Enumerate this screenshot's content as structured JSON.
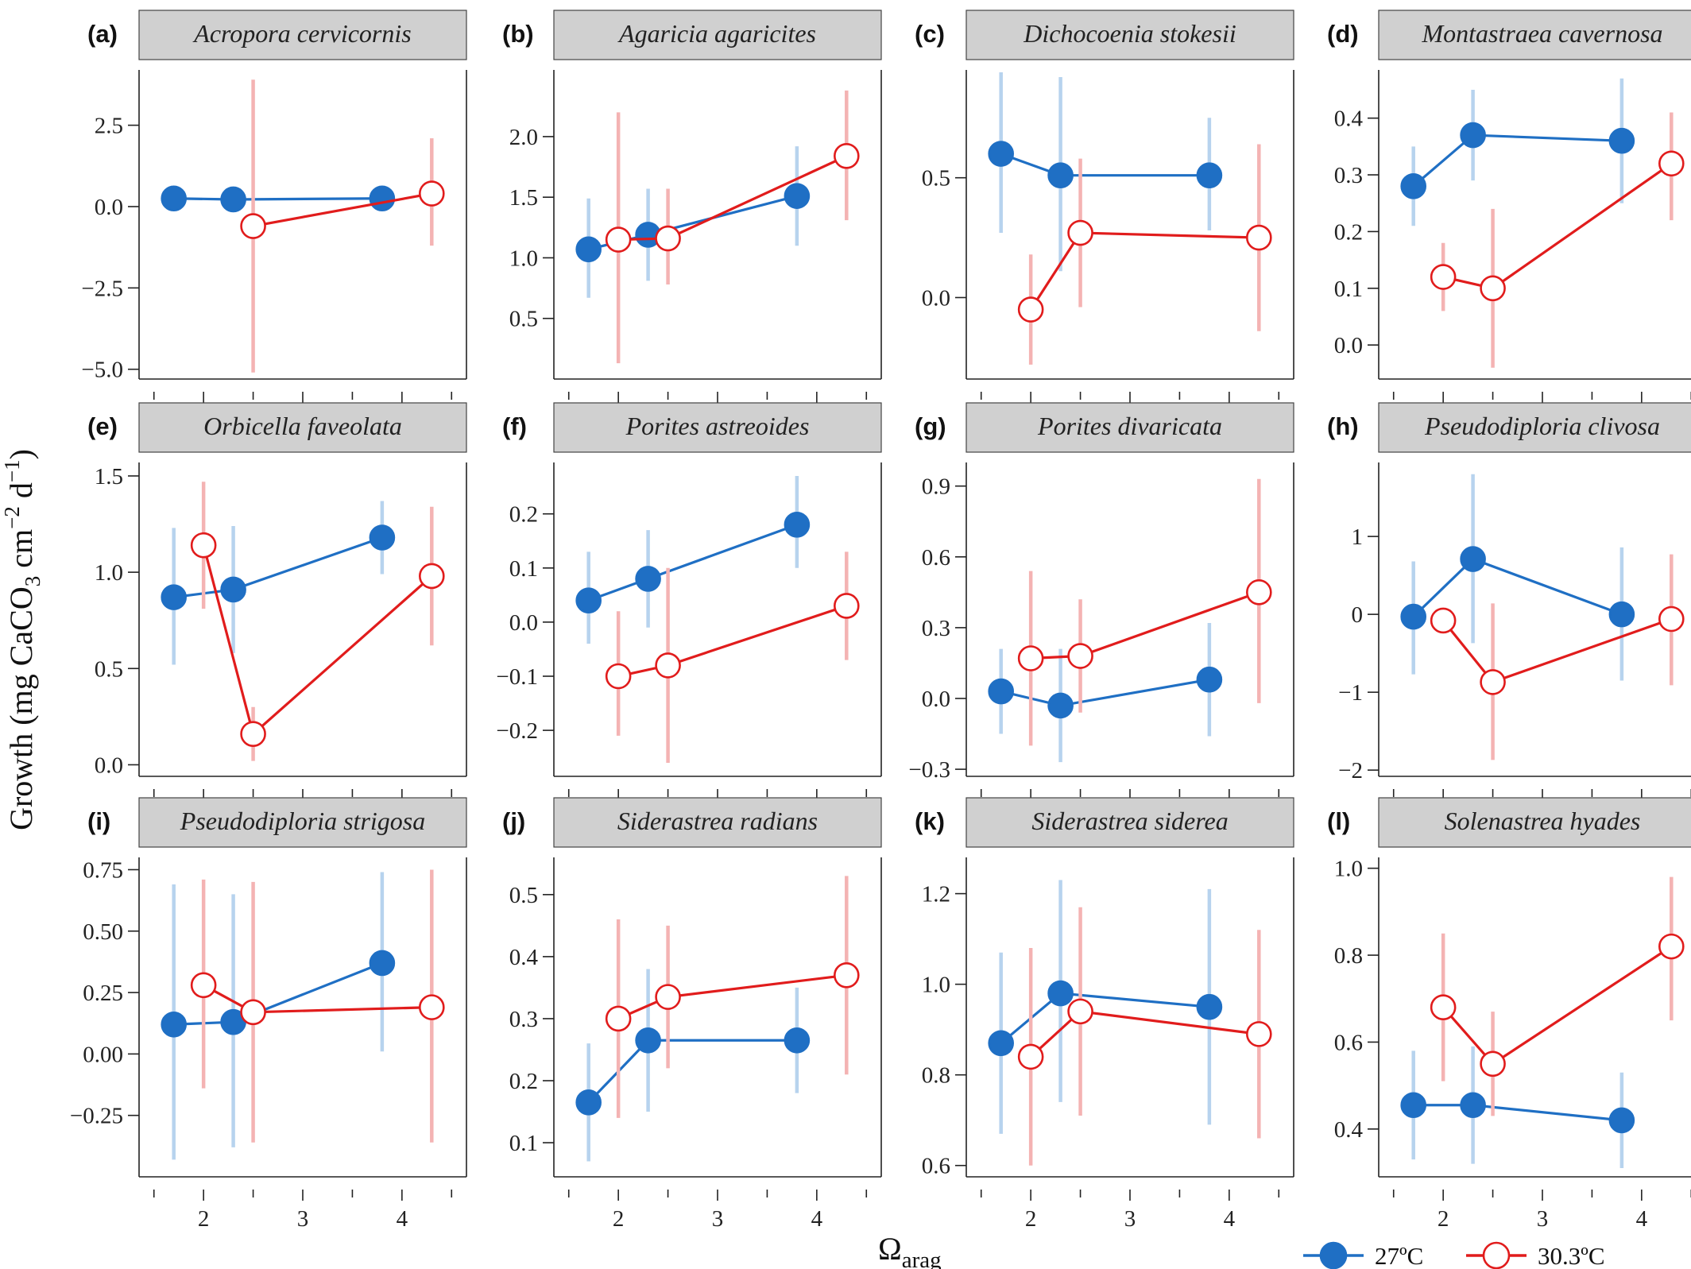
{
  "figure": {
    "ylabel_parts": [
      "Growth (mg  CaCO",
      "3",
      " cm",
      "−2",
      " d",
      "−1",
      ")"
    ],
    "xlabel_main": "Ω",
    "xlabel_sub": "arag",
    "colors": {
      "t27": "#1f6fc4",
      "t30": "#e11c1c",
      "t27_err": "#b7d3ee",
      "t30_err": "#f4b3b3",
      "strip": "#d0d0d0"
    }
  },
  "legend": [
    {
      "key": "t27",
      "label": "27ºC",
      "marker": "filled"
    },
    {
      "key": "t30",
      "label": "30.3ºC",
      "marker": "open"
    }
  ],
  "chart_data": [
    {
      "type": "line",
      "letter": "(a)",
      "title": "Acropora cervicornis",
      "xlim": [
        1.35,
        4.65
      ],
      "xticks": [
        2,
        3,
        4
      ],
      "show_x_labels": false,
      "ylim": [
        -5.3,
        4.2
      ],
      "yticks": [
        -5,
        -2.5,
        0,
        2.5
      ],
      "ytick_labels": [
        "−5.0",
        "−2.5",
        "0.0",
        "2.5"
      ],
      "series": [
        {
          "temp": "t27",
          "points": [
            [
              1.7,
              0.25,
              0.25,
              0.25
            ],
            [
              2.3,
              0.22,
              0.22,
              0.22
            ],
            [
              3.8,
              0.25,
              0.25,
              0.25
            ]
          ]
        },
        {
          "temp": "t30",
          "points": [
            [
              2.5,
              -0.6,
              -5.1,
              3.9
            ],
            [
              4.3,
              0.4,
              -1.2,
              2.1
            ]
          ]
        }
      ]
    },
    {
      "type": "line",
      "letter": "(b)",
      "title": "Agaricia agaricites",
      "xlim": [
        1.35,
        4.65
      ],
      "xticks": [
        2,
        3,
        4
      ],
      "show_x_labels": false,
      "ylim": [
        0.0,
        2.55
      ],
      "yticks": [
        0.5,
        1.0,
        1.5,
        2.0
      ],
      "ytick_labels": [
        "0.5",
        "1.0",
        "1.5",
        "2.0"
      ],
      "series": [
        {
          "temp": "t27",
          "points": [
            [
              1.7,
              1.07,
              0.67,
              1.49
            ],
            [
              2.3,
              1.19,
              0.81,
              1.57
            ],
            [
              3.8,
              1.51,
              1.1,
              1.92
            ]
          ]
        },
        {
          "temp": "t30",
          "points": [
            [
              2.0,
              1.15,
              0.13,
              2.2
            ],
            [
              2.5,
              1.16,
              0.78,
              1.57
            ],
            [
              4.3,
              1.84,
              1.31,
              2.38
            ]
          ]
        }
      ]
    },
    {
      "type": "line",
      "letter": "(c)",
      "title": "Dichocoenia stokesii",
      "xlim": [
        1.35,
        4.65
      ],
      "xticks": [
        2,
        3,
        4
      ],
      "show_x_labels": false,
      "ylim": [
        -0.34,
        0.95
      ],
      "yticks": [
        0.0,
        0.5
      ],
      "ytick_labels": [
        "0.0",
        "0.5"
      ],
      "series": [
        {
          "temp": "t27",
          "points": [
            [
              1.7,
              0.6,
              0.27,
              0.94
            ],
            [
              2.3,
              0.51,
              0.11,
              0.92
            ],
            [
              3.8,
              0.51,
              0.28,
              0.75
            ]
          ]
        },
        {
          "temp": "t30",
          "points": [
            [
              2.0,
              -0.05,
              -0.28,
              0.18
            ],
            [
              2.5,
              0.27,
              -0.04,
              0.58
            ],
            [
              4.3,
              0.25,
              -0.14,
              0.64
            ]
          ]
        }
      ]
    },
    {
      "type": "line",
      "letter": "(d)",
      "title": "Montastraea cavernosa",
      "xlim": [
        1.35,
        4.65
      ],
      "xticks": [
        2,
        3,
        4
      ],
      "show_x_labels": false,
      "ylim": [
        -0.06,
        0.485
      ],
      "yticks": [
        0.0,
        0.1,
        0.2,
        0.3,
        0.4
      ],
      "ytick_labels": [
        "0.0",
        "0.1",
        "0.2",
        "0.3",
        "0.4"
      ],
      "series": [
        {
          "temp": "t27",
          "points": [
            [
              1.7,
              0.28,
              0.21,
              0.35
            ],
            [
              2.3,
              0.37,
              0.29,
              0.45
            ],
            [
              3.8,
              0.36,
              0.25,
              0.47
            ]
          ]
        },
        {
          "temp": "t30",
          "points": [
            [
              2.0,
              0.12,
              0.06,
              0.18
            ],
            [
              2.5,
              0.1,
              -0.04,
              0.24
            ],
            [
              4.3,
              0.32,
              0.22,
              0.41
            ]
          ]
        }
      ]
    },
    {
      "type": "line",
      "letter": "(e)",
      "title": "Orbicella faveolata",
      "xlim": [
        1.35,
        4.65
      ],
      "xticks": [
        2,
        3,
        4
      ],
      "show_x_labels": false,
      "ylim": [
        -0.06,
        1.57
      ],
      "yticks": [
        0.0,
        0.5,
        1.0,
        1.5
      ],
      "ytick_labels": [
        "0.0",
        "0.5",
        "1.0",
        "1.5"
      ],
      "series": [
        {
          "temp": "t27",
          "points": [
            [
              1.7,
              0.87,
              0.52,
              1.23
            ],
            [
              2.3,
              0.91,
              0.58,
              1.24
            ],
            [
              3.8,
              1.18,
              0.99,
              1.37
            ]
          ]
        },
        {
          "temp": "t30",
          "points": [
            [
              2.0,
              1.14,
              0.81,
              1.47
            ],
            [
              2.5,
              0.16,
              0.02,
              0.3
            ],
            [
              4.3,
              0.98,
              0.62,
              1.34
            ]
          ]
        }
      ]
    },
    {
      "type": "line",
      "letter": "(f)",
      "title": "Porites astreoides",
      "xlim": [
        1.35,
        4.65
      ],
      "xticks": [
        2,
        3,
        4
      ],
      "show_x_labels": false,
      "ylim": [
        -0.285,
        0.295
      ],
      "yticks": [
        -0.2,
        -0.1,
        0.0,
        0.1,
        0.2
      ],
      "ytick_labels": [
        "−0.2",
        "−0.1",
        "0.0",
        "0.1",
        "0.2"
      ],
      "series": [
        {
          "temp": "t27",
          "points": [
            [
              1.7,
              0.04,
              -0.04,
              0.13
            ],
            [
              2.3,
              0.08,
              -0.01,
              0.17
            ],
            [
              3.8,
              0.18,
              0.1,
              0.27
            ]
          ]
        },
        {
          "temp": "t30",
          "points": [
            [
              2.0,
              -0.1,
              -0.21,
              0.02
            ],
            [
              2.5,
              -0.08,
              -0.26,
              0.1
            ],
            [
              4.3,
              0.03,
              -0.07,
              0.13
            ]
          ]
        }
      ]
    },
    {
      "type": "line",
      "letter": "(g)",
      "title": "Porites divaricata",
      "xlim": [
        1.35,
        4.65
      ],
      "xticks": [
        2,
        3,
        4
      ],
      "show_x_labels": false,
      "ylim": [
        -0.33,
        1.0
      ],
      "yticks": [
        -0.3,
        0.0,
        0.3,
        0.6,
        0.9
      ],
      "ytick_labels": [
        "−0.3",
        "0.0",
        "0.3",
        "0.6",
        "0.9"
      ],
      "series": [
        {
          "temp": "t27",
          "points": [
            [
              1.7,
              0.03,
              -0.15,
              0.21
            ],
            [
              2.3,
              -0.03,
              -0.27,
              0.21
            ],
            [
              3.8,
              0.08,
              -0.16,
              0.32
            ]
          ]
        },
        {
          "temp": "t30",
          "points": [
            [
              2.0,
              0.17,
              -0.2,
              0.54
            ],
            [
              2.5,
              0.18,
              -0.06,
              0.42
            ],
            [
              4.3,
              0.45,
              -0.02,
              0.93
            ]
          ]
        }
      ]
    },
    {
      "type": "line",
      "letter": "(h)",
      "title": "Pseudodiploria clivosa",
      "xlim": [
        1.35,
        4.65
      ],
      "xticks": [
        2,
        3,
        4
      ],
      "show_x_labels": false,
      "ylim": [
        -2.08,
        1.95
      ],
      "yticks": [
        -2,
        -1,
        0,
        1
      ],
      "ytick_labels": [
        "−2",
        "−1",
        "0",
        "1"
      ],
      "series": [
        {
          "temp": "t27",
          "points": [
            [
              1.7,
              -0.03,
              -0.77,
              0.68
            ],
            [
              2.3,
              0.71,
              -0.37,
              1.8
            ],
            [
              3.8,
              0.0,
              -0.85,
              0.86
            ]
          ]
        },
        {
          "temp": "t30",
          "points": [
            [
              2.0,
              -0.08,
              -0.08,
              -0.08
            ],
            [
              2.5,
              -0.87,
              -1.87,
              0.14
            ],
            [
              4.3,
              -0.06,
              -0.91,
              0.77
            ]
          ]
        }
      ]
    },
    {
      "type": "line",
      "letter": "(i)",
      "title": "Pseudodiploria strigosa",
      "xlim": [
        1.35,
        4.65
      ],
      "xticks": [
        2,
        3,
        4
      ],
      "show_x_labels": true,
      "ylim": [
        -0.5,
        0.8
      ],
      "yticks": [
        -0.25,
        0.0,
        0.25,
        0.5,
        0.75
      ],
      "ytick_labels": [
        "−0.25",
        "0.00",
        "0.25",
        "0.50",
        "0.75"
      ],
      "series": [
        {
          "temp": "t27",
          "points": [
            [
              1.7,
              0.12,
              -0.43,
              0.69
            ],
            [
              2.3,
              0.13,
              -0.38,
              0.65
            ],
            [
              3.8,
              0.37,
              0.01,
              0.74
            ]
          ]
        },
        {
          "temp": "t30",
          "points": [
            [
              2.0,
              0.28,
              -0.14,
              0.71
            ],
            [
              2.5,
              0.17,
              -0.36,
              0.7
            ],
            [
              4.3,
              0.19,
              -0.36,
              0.75
            ]
          ]
        }
      ]
    },
    {
      "type": "line",
      "letter": "(j)",
      "title": "Siderastrea radians",
      "xlim": [
        1.35,
        4.65
      ],
      "xticks": [
        2,
        3,
        4
      ],
      "show_x_labels": true,
      "ylim": [
        0.045,
        0.56
      ],
      "yticks": [
        0.1,
        0.2,
        0.3,
        0.4,
        0.5
      ],
      "ytick_labels": [
        "0.1",
        "0.2",
        "0.3",
        "0.4",
        "0.5"
      ],
      "series": [
        {
          "temp": "t27",
          "points": [
            [
              1.7,
              0.165,
              0.07,
              0.26
            ],
            [
              2.3,
              0.265,
              0.15,
              0.38
            ],
            [
              3.8,
              0.265,
              0.18,
              0.35
            ]
          ]
        },
        {
          "temp": "t30",
          "points": [
            [
              2.0,
              0.3,
              0.14,
              0.46
            ],
            [
              2.5,
              0.335,
              0.22,
              0.45
            ],
            [
              4.3,
              0.37,
              0.21,
              0.53
            ]
          ]
        }
      ]
    },
    {
      "type": "line",
      "letter": "(k)",
      "title": "Siderastrea siderea",
      "xlim": [
        1.35,
        4.65
      ],
      "xticks": [
        2,
        3,
        4
      ],
      "show_x_labels": true,
      "ylim": [
        0.575,
        1.28
      ],
      "yticks": [
        0.6,
        0.8,
        1.0,
        1.2
      ],
      "ytick_labels": [
        "0.6",
        "0.8",
        "1.0",
        "1.2"
      ],
      "series": [
        {
          "temp": "t27",
          "points": [
            [
              1.7,
              0.87,
              0.67,
              1.07
            ],
            [
              2.3,
              0.98,
              0.74,
              1.23
            ],
            [
              3.8,
              0.95,
              0.69,
              1.21
            ]
          ]
        },
        {
          "temp": "t30",
          "points": [
            [
              2.0,
              0.84,
              0.6,
              1.08
            ],
            [
              2.5,
              0.94,
              0.71,
              1.17
            ],
            [
              4.3,
              0.89,
              0.66,
              1.12
            ]
          ]
        }
      ]
    },
    {
      "type": "line",
      "letter": "(l)",
      "title": "Solenastrea hyades",
      "xlim": [
        1.35,
        4.65
      ],
      "xticks": [
        2,
        3,
        4
      ],
      "show_x_labels": true,
      "ylim": [
        0.29,
        1.025
      ],
      "yticks": [
        0.4,
        0.6,
        0.8,
        1.0
      ],
      "ytick_labels": [
        "0.4",
        "0.6",
        "0.8",
        "1.0"
      ],
      "series": [
        {
          "temp": "t27",
          "points": [
            [
              1.7,
              0.455,
              0.33,
              0.58
            ],
            [
              2.3,
              0.455,
              0.32,
              0.59
            ],
            [
              3.8,
              0.42,
              0.31,
              0.53
            ]
          ]
        },
        {
          "temp": "t30",
          "points": [
            [
              2.0,
              0.68,
              0.51,
              0.85
            ],
            [
              2.5,
              0.55,
              0.43,
              0.67
            ],
            [
              4.3,
              0.82,
              0.65,
              0.98
            ]
          ]
        }
      ]
    }
  ]
}
